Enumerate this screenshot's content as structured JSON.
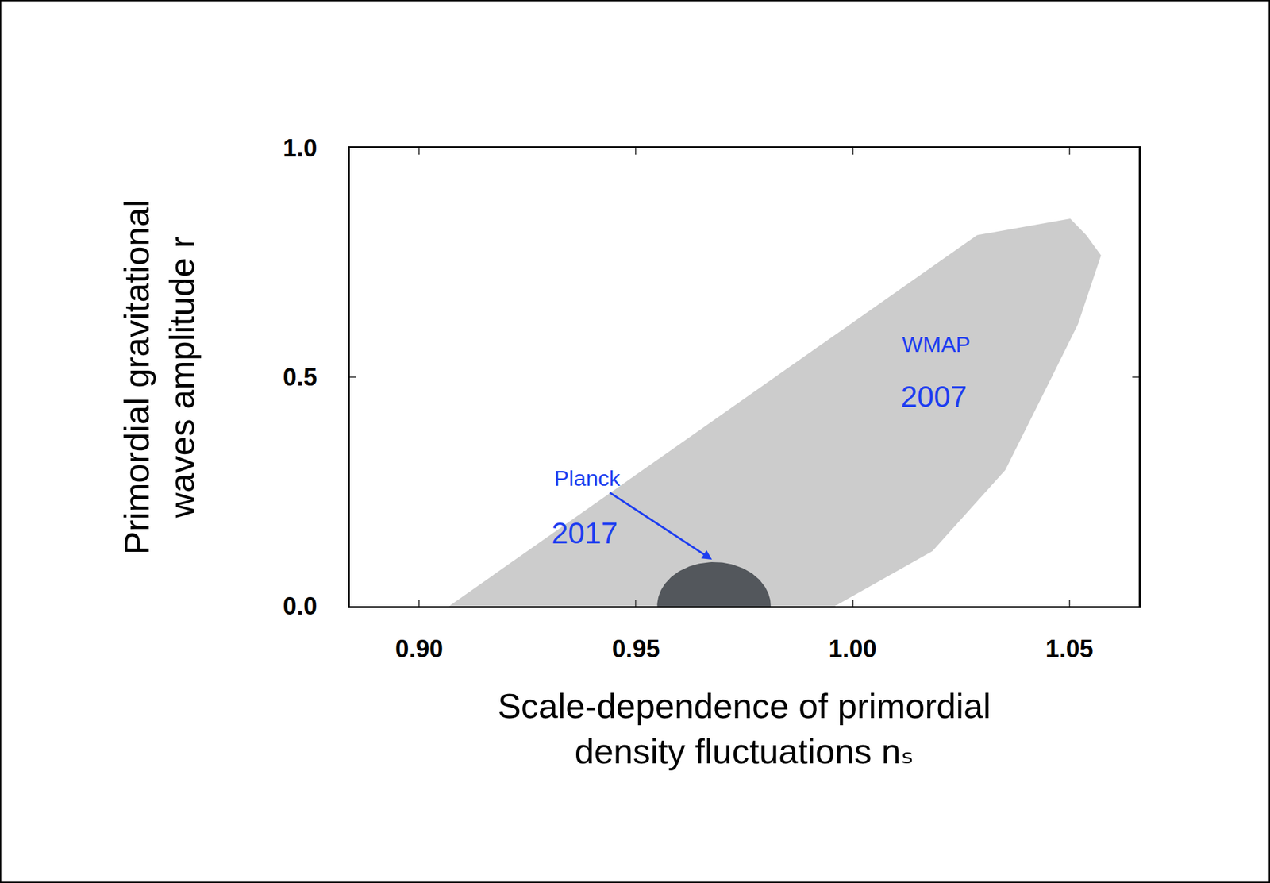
{
  "chart_data": {
    "type": "region",
    "x_label": "Scale-dependence of primordial\ndensity fluctuations nₛ",
    "y_label": "Primordial gravitational\nwaves amplitude r",
    "xlim": [
      0.884,
      1.066
    ],
    "ylim": [
      0,
      1.0
    ],
    "xticks": [
      {
        "value": 0.9,
        "label": "0.90"
      },
      {
        "value": 0.95,
        "label": "0.95"
      },
      {
        "value": 1.0,
        "label": "1.00"
      },
      {
        "value": 1.05,
        "label": "1.05"
      }
    ],
    "yticks": [
      {
        "value": 0,
        "label": "0.0"
      },
      {
        "value": 0.5,
        "label": "0.5"
      },
      {
        "value": 1.0,
        "label": "1.0"
      }
    ],
    "grid": false,
    "series": [
      {
        "type": "polygon",
        "color": "#cccccc",
        "x": [
          0.9069,
          1.0287,
          1.0502,
          1.0539,
          1.0573,
          1.052,
          1.0455,
          1.0352,
          1.0184,
          0.9959
        ],
        "y": [
          0,
          0.81,
          0.846,
          0.81,
          0.766,
          0.616,
          0.492,
          0.297,
          0.12,
          0
        ]
      },
      {
        "type": "ellipse",
        "color": "#53575c",
        "center": [
          0.968,
          0
        ],
        "radius": [
          0.0131,
          0.096
        ]
      }
    ],
    "annotations": [
      {
        "text": "WMAP",
        "x": 1.0193,
        "y": 0.572,
        "color": "#1e3ef0"
      },
      {
        "text": "2007",
        "x": 1.0187,
        "y": 0.457,
        "color": "#1e3ef0"
      },
      {
        "text": "Planck",
        "x": 0.9388,
        "y": 0.28,
        "color": "#1e3ef0",
        "arrow_to": [
          0.9678,
          0.1
        ]
      },
      {
        "text": "2017",
        "x": 0.9382,
        "y": 0.159,
        "color": "#1e3ef0"
      }
    ]
  }
}
